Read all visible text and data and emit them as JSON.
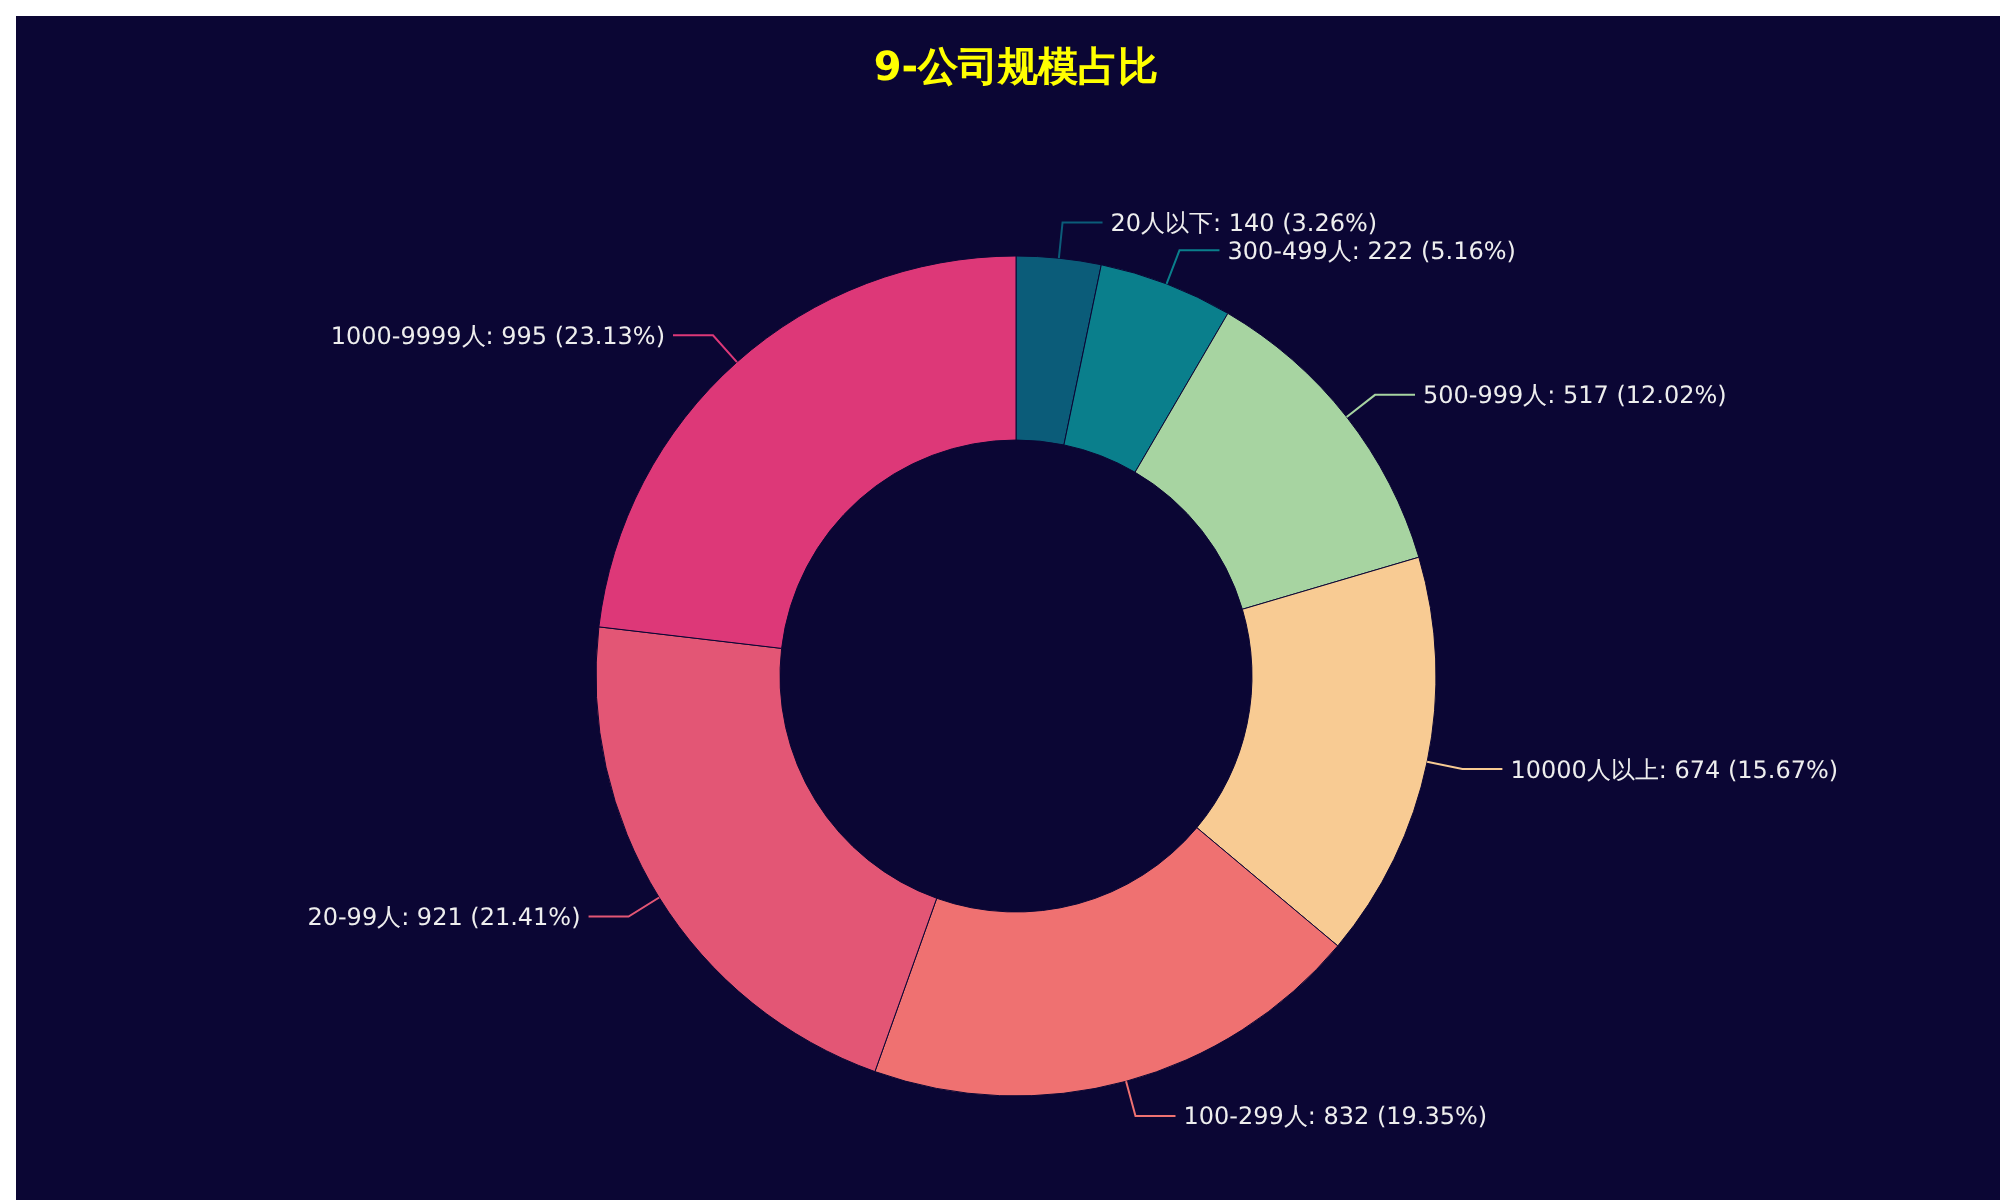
{
  "chart_data": {
    "type": "donut",
    "title": "9-公司规模占比",
    "categories": [
      "20人以下",
      "300-499人",
      "500-999人",
      "10000人以上",
      "100-299人",
      "20-99人",
      "1000-9999人"
    ],
    "values": [
      140,
      222,
      517,
      674,
      832,
      921,
      995
    ],
    "colors": [
      "#0b5c79",
      "#0a7f8c",
      "#a7d4a1",
      "#f8cb93",
      "#ef7171",
      "#e35675",
      "#dd3878"
    ],
    "value_labels": [
      "140 (3.26%)",
      "222 (5.16%)",
      "517 (12.02%)",
      "674 (15.67%)",
      "832 (19.35%)",
      "921 (21.41%)",
      "995 (23.13%)"
    ]
  }
}
